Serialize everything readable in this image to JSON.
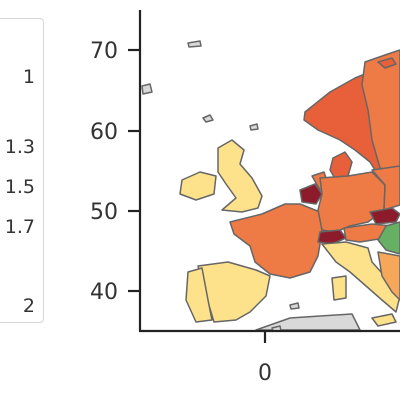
{
  "legend": {
    "labels": [
      "1",
      "1.3",
      "1.5",
      "1.7",
      "",
      "2"
    ]
  },
  "axes": {
    "y_ticks": [
      "40",
      "50",
      "60",
      "70"
    ],
    "x_ticks": [
      "0"
    ]
  },
  "colors": {
    "low": "#fde28b",
    "mid_low": "#f6a75a",
    "mid": "#ee7a45",
    "high": "#e8603a",
    "very_high": "#8c1c2c",
    "green": "#66b063",
    "no_data": "#d9d9d9",
    "border": "#666666"
  }
}
